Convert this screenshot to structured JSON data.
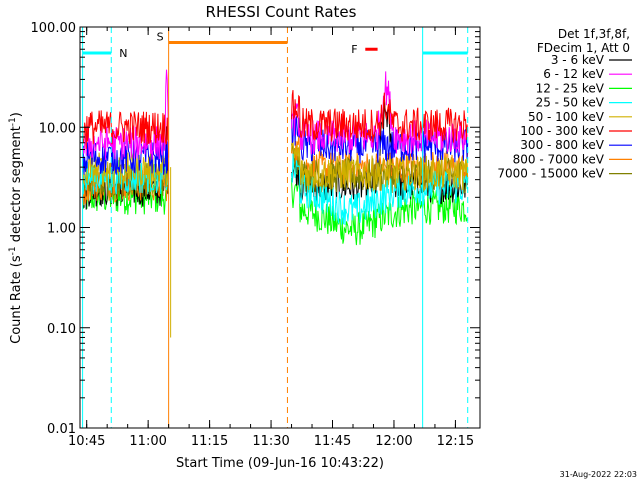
{
  "chart_data": {
    "type": "line",
    "title": "RHESSI Count Rates",
    "xlabel": "Start Time (09-Jun-16 10:43:22)",
    "ylabel_main": "Count Rate (s",
    "ylabel_sup1": "-1",
    "ylabel_mid": " detector segment",
    "ylabel_sup2": "-1",
    "ylabel_end": ")",
    "y_scale": "log",
    "ylim": [
      0.01,
      100
    ],
    "xlim": [
      "10:43",
      "12:21"
    ],
    "x_ticks": [
      "10:45",
      "11:00",
      "11:15",
      "11:30",
      "11:45",
      "12:00",
      "12:15"
    ],
    "y_ticks": [
      "0.01",
      "0.10",
      "1.00",
      "10.00",
      "100.00"
    ],
    "legend_header": [
      "Det 1f,3f,8f,",
      "FDecim 1, Att 0"
    ],
    "legend_position": "right",
    "series": [
      {
        "name": "3 - 6 keV",
        "color": "#000000",
        "level_seg1": 2.4,
        "level_seg2": 2.6
      },
      {
        "name": "6 - 12 keV",
        "color": "#ff00ff",
        "level_seg1": 7.0,
        "level_seg2": 8.0
      },
      {
        "name": "12 - 25 keV",
        "color": "#00ff00",
        "level_seg1": 2.0,
        "level_seg2": 1.6
      },
      {
        "name": "25 - 50 keV",
        "color": "#00ffff",
        "level_seg1": 3.2,
        "level_seg2": 2.5
      },
      {
        "name": "50 - 100 keV",
        "color": "#d0b000",
        "level_seg1": 3.8,
        "level_seg2": 3.5
      },
      {
        "name": "100 - 300 keV",
        "color": "#ff0000",
        "level_seg1": 10.0,
        "level_seg2": 10.5
      },
      {
        "name": "300 - 800 keV",
        "color": "#0000ff",
        "level_seg1": 5.0,
        "level_seg2": 6.5
      },
      {
        "name": "800 - 7000 keV",
        "color": "#ff8000",
        "level_seg1": 2.7,
        "level_seg2": 3.9
      },
      {
        "name": "7000 - 15000 keV",
        "color": "#808000",
        "level_seg1": 3.0,
        "level_seg2": 3.3
      }
    ],
    "data_segments": [
      [
        "10:44",
        "11:05"
      ],
      [
        "11:35",
        "12:18"
      ]
    ],
    "events": {
      "night_label": "N",
      "saa_label": "S",
      "flare_label": "F",
      "night_bars": [
        [
          "10:44",
          "10:51"
        ],
        [
          "12:07",
          "12:18"
        ]
      ],
      "saa_bar": [
        "11:05",
        "11:34"
      ],
      "flare_bar": [
        "11:53",
        "11:56"
      ],
      "night_lines": [
        "10:44",
        "10:51",
        "12:07",
        "12:18"
      ],
      "saa_lines": [
        "11:05",
        "11:34"
      ],
      "flare_peak_time": "11:58",
      "flare_peak_value": 25
    },
    "colors": {
      "night": "#00ffff",
      "saa": "#ff8000",
      "flare": "#ff0000"
    }
  },
  "footer": {
    "timestamp": "31-Aug-2022 22:03"
  }
}
